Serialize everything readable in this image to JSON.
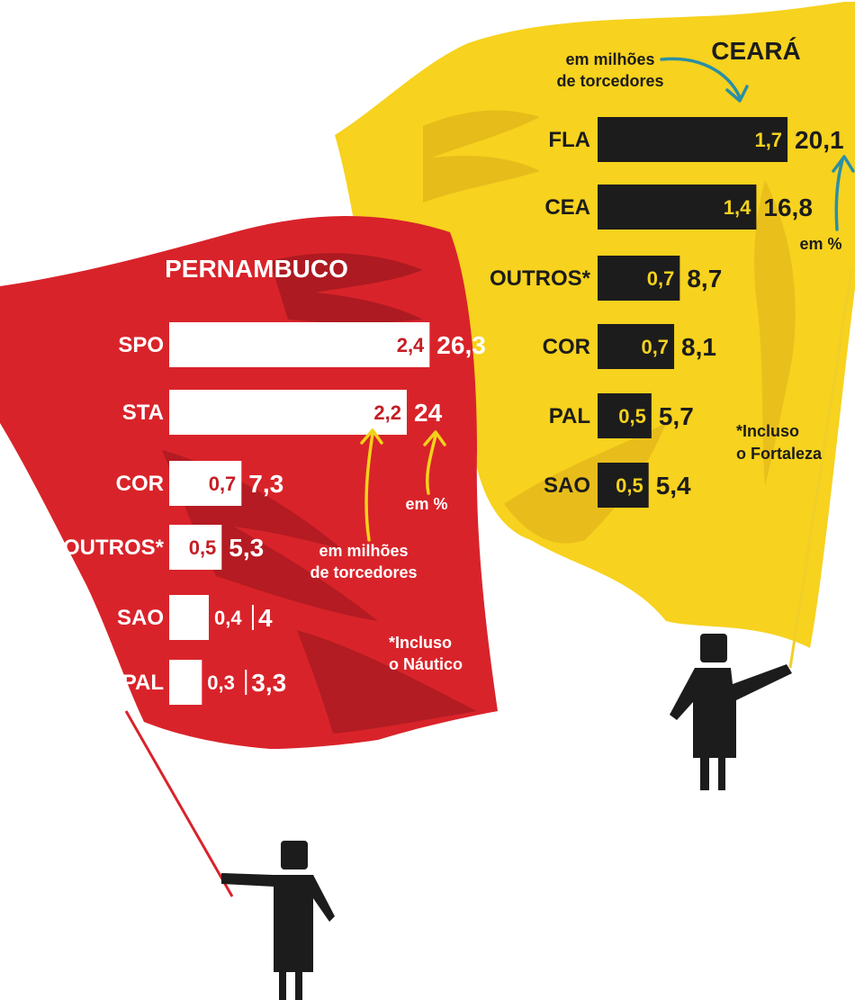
{
  "chart_data": [
    {
      "type": "bar",
      "orientation": "horizontal",
      "title": "PERNAMBUCO",
      "categories": [
        "SPO",
        "STA",
        "COR",
        "OUTROS*",
        "SAO",
        "PAL"
      ],
      "series": [
        {
          "values": [
            2.4,
            2.2,
            0.7,
            0.5,
            0.4,
            0.3
          ],
          "labels": [
            "2,4",
            "2,2",
            "0,7",
            "0,5",
            "0,4",
            "0,3"
          ]
        },
        {
          "values": [
            26.3,
            24,
            7.3,
            5.3,
            4,
            3.3
          ],
          "labels": [
            "26,3",
            "24",
            "7,3",
            "5,3",
            "4",
            "3,3"
          ]
        }
      ],
      "annotations": {
        "millions": [
          "em milhões",
          "de torcedores"
        ],
        "percent": "em %",
        "footnote": [
          "*Incluso",
          "o Náutico"
        ]
      },
      "colors": {
        "flag": "#d9232a",
        "flag_shadow": "#a71a20",
        "bar": "#ffffff",
        "inner_label": "#c41e24",
        "outer_label": "#ffffff",
        "arrow": "#f2d21b"
      }
    },
    {
      "type": "bar",
      "orientation": "horizontal",
      "title": "CEARÁ",
      "categories": [
        "FLA",
        "CEA",
        "OUTROS*",
        "COR",
        "PAL",
        "SAO"
      ],
      "series": [
        {
          "values": [
            1.7,
            1.4,
            0.7,
            0.7,
            0.5,
            0.5
          ],
          "labels": [
            "1,7",
            "1,4",
            "0,7",
            "0,7",
            "0,5",
            "0,5"
          ]
        },
        {
          "values": [
            20.1,
            16.8,
            8.7,
            8.1,
            5.7,
            5.4
          ],
          "labels": [
            "20,1",
            "16,8",
            "8,7",
            "8,1",
            "5,7",
            "5,4"
          ]
        }
      ],
      "annotations": {
        "millions": [
          "em milhões",
          "de torcedores"
        ],
        "percent": "em %",
        "footnote": [
          "*Incluso",
          "o Fortaleza"
        ]
      },
      "colors": {
        "flag": "#f7d21e",
        "flag_shadow": "#e0b418",
        "bar": "#1c1c1c",
        "inner_label": "#f5d21e",
        "outer_label": "#1c1c1c",
        "arrow": "#2a8fa6"
      }
    }
  ]
}
